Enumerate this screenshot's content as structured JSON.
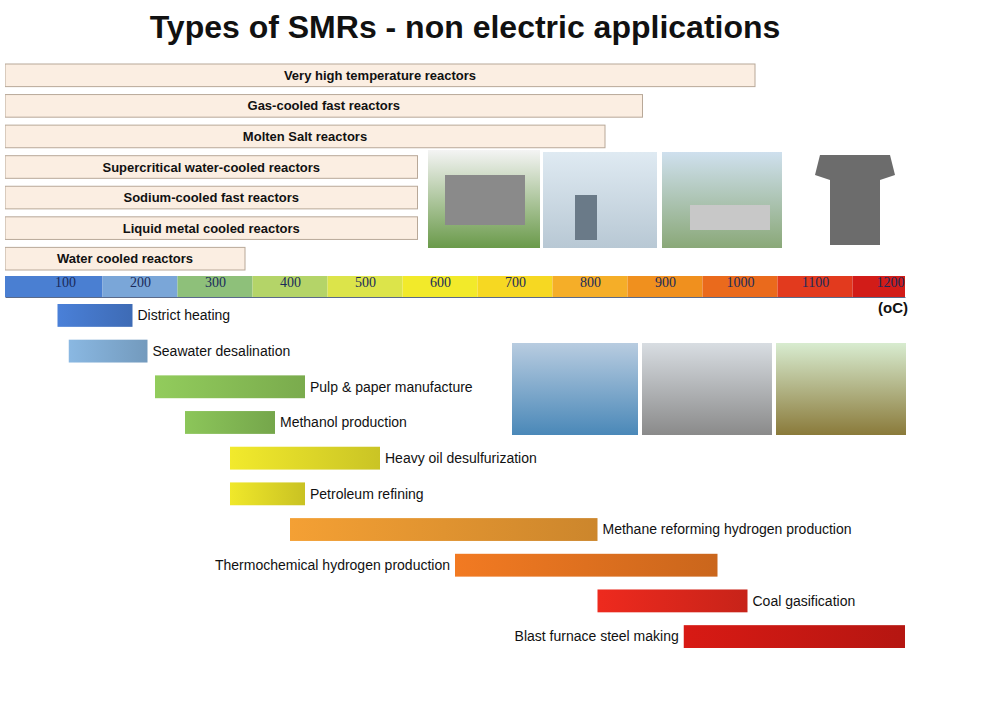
{
  "chart_data": {
    "type": "range_bar",
    "orientation": "horizontal",
    "title": "Types of SMRs - non electric applications",
    "x_label": "(oC)",
    "xlim": [
      20,
      1220
    ],
    "xticks": [
      100,
      200,
      300,
      400,
      500,
      600,
      700,
      800,
      900,
      1000,
      1100,
      1200
    ],
    "reactors": {
      "categories": [
        "Very high temperature reactors",
        "Gas-cooled fast reactors",
        "Molten Salt reactors",
        "Supercritical water-cooled reactors",
        "Sodium-cooled fast reactors",
        "Liquid metal cooled reactors",
        "Water cooled reactors"
      ],
      "low": [
        20,
        20,
        20,
        20,
        20,
        20,
        20
      ],
      "high": [
        1020,
        870,
        820,
        570,
        570,
        570,
        340
      ],
      "color": "#fbeee2"
    },
    "applications": {
      "categories": [
        "District heating",
        "Seawater desalination",
        "Pulp & paper manufacture",
        "Methanol production",
        "Heavy oil desulfurization",
        "Petroleum refining",
        "Methane reforming hydrogen production",
        "Thermochemical hydrogen production",
        "Coal gasification",
        "Blast furnace steel making"
      ],
      "low": [
        90,
        105,
        220,
        260,
        320,
        320,
        400,
        620,
        810,
        925
      ],
      "high": [
        190,
        210,
        420,
        380,
        520,
        420,
        810,
        970,
        1010,
        1220
      ],
      "colors": [
        "#4a80d8",
        "#8ab8e2",
        "#92cc5c",
        "#8cc65a",
        "#f2ea2c",
        "#f0e82a",
        "#f4a034",
        "#f27a22",
        "#ee2a1e",
        "#d81a14"
      ]
    }
  }
}
